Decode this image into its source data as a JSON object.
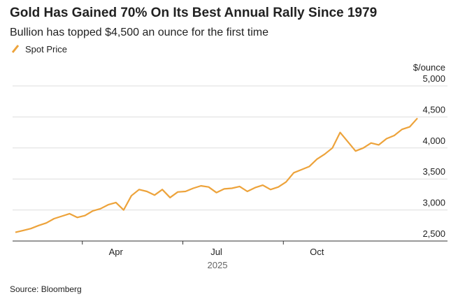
{
  "chart_data": {
    "type": "line",
    "title": "Gold Has Gained 70% On Its Best Annual Rally Since 1979",
    "subtitle": "Bullion has topped $4,500 an ounce for the first time",
    "y_unit": "$/ounce",
    "x_label": "2025",
    "source": "Source: Bloomberg",
    "categories": [
      null,
      null,
      null,
      null,
      null,
      null,
      null,
      null,
      null,
      null,
      null,
      null,
      null,
      "Apr",
      null,
      null,
      null,
      null,
      null,
      null,
      null,
      null,
      null,
      null,
      null,
      null,
      "Jul",
      null,
      null,
      null,
      null,
      null,
      null,
      null,
      null,
      null,
      null,
      null,
      null,
      "Oct",
      null,
      null,
      null,
      null,
      null,
      null,
      null,
      null,
      null,
      null,
      null,
      null,
      null
    ],
    "series": [
      {
        "name": "Spot Price",
        "color": "#eda33b",
        "values": [
          2640,
          2670,
          2700,
          2750,
          2790,
          2860,
          2900,
          2940,
          2880,
          2910,
          2985,
          3020,
          3085,
          3120,
          3000,
          3230,
          3330,
          3300,
          3240,
          3330,
          3200,
          3290,
          3300,
          3350,
          3390,
          3370,
          3280,
          3340,
          3350,
          3380,
          3300,
          3360,
          3400,
          3330,
          3370,
          3450,
          3600,
          3650,
          3700,
          3820,
          3900,
          4000,
          4250,
          4100,
          3950,
          4000,
          4080,
          4050,
          4150,
          4200,
          4300,
          4340,
          4480
        ]
      }
    ],
    "ylim": [
      2500,
      5000
    ],
    "yticks": [
      {
        "value": 2500,
        "label": "2,500"
      },
      {
        "value": 3000,
        "label": "3,000"
      },
      {
        "value": 3500,
        "label": "3,500"
      },
      {
        "value": 4000,
        "label": "4,000"
      },
      {
        "value": 4500,
        "label": "4,500"
      },
      {
        "value": 5000,
        "label": "5,000"
      }
    ],
    "grid": true
  }
}
